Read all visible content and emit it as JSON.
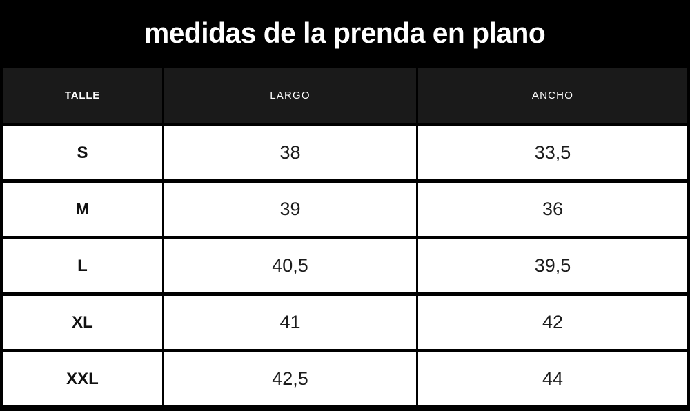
{
  "title": "medidas de la prenda en plano",
  "table": {
    "columns": [
      "TALLE",
      "LARGO",
      "ANCHO"
    ],
    "rows": [
      {
        "size": "S",
        "largo": "38",
        "ancho": "33,5"
      },
      {
        "size": "M",
        "largo": "39",
        "ancho": "36"
      },
      {
        "size": "L",
        "largo": "40,5",
        "ancho": "39,5"
      },
      {
        "size": "XL",
        "largo": "41",
        "ancho": "42"
      },
      {
        "size": "XXL",
        "largo": "42,5",
        "ancho": "44"
      }
    ]
  },
  "colors": {
    "title_bg": "#000000",
    "header_bg": "#1a1a1a",
    "cell_bg": "#ffffff",
    "border": "#000000",
    "text_light": "#ffffff",
    "text_dark": "#1c1c1c"
  },
  "chart_data": {
    "type": "table",
    "title": "medidas de la prenda en plano",
    "columns": [
      "TALLE",
      "LARGO",
      "ANCHO"
    ],
    "rows": [
      [
        "S",
        "38",
        "33,5"
      ],
      [
        "M",
        "39",
        "36"
      ],
      [
        "L",
        "40,5",
        "39,5"
      ],
      [
        "XL",
        "41",
        "42"
      ],
      [
        "XXL",
        "42,5",
        "44"
      ]
    ]
  }
}
